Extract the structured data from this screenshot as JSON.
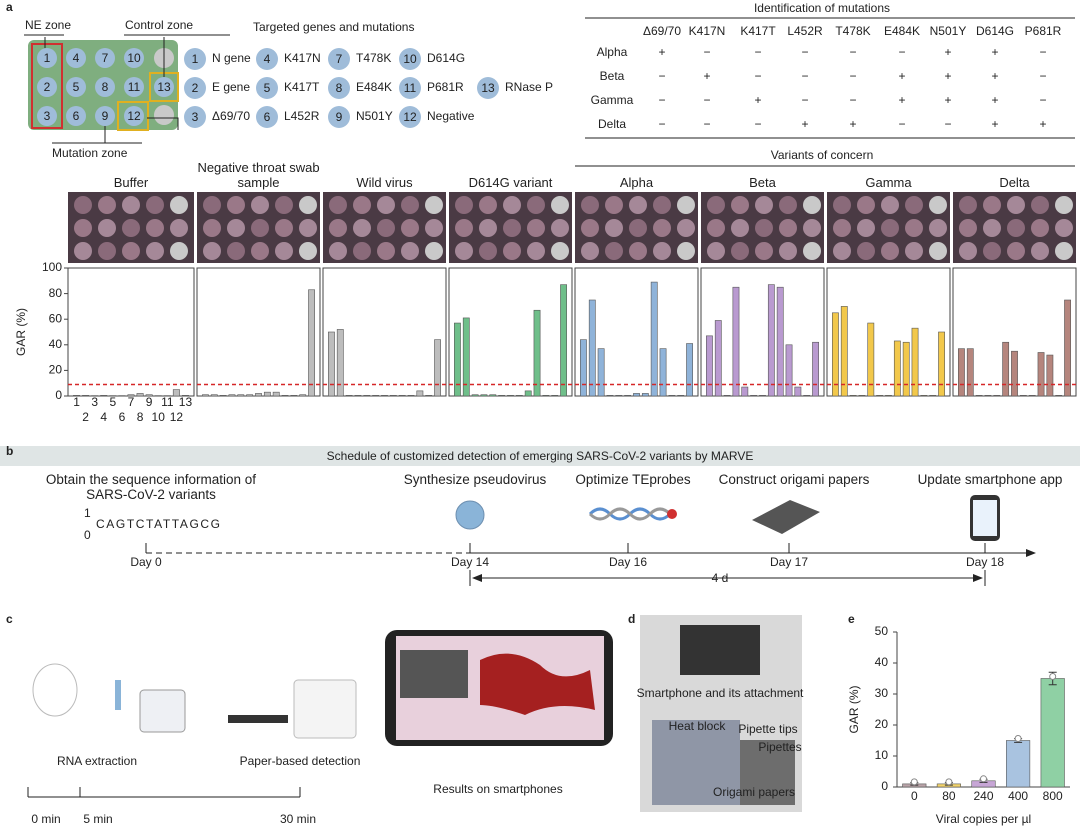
{
  "panel_labels": [
    "a",
    "b",
    "c",
    "d",
    "e"
  ],
  "plate": {
    "ne_zone": "NE zone",
    "control_zone": "Control zone",
    "mutation_zone": "Mutation zone"
  },
  "genes": {
    "title": "Targeted genes and mutations",
    "items": [
      {
        "number": 1,
        "label": "N gene"
      },
      {
        "number": 2,
        "label": "E gene"
      },
      {
        "number": 3,
        "label": "Δ69/70"
      },
      {
        "number": 4,
        "label": "K417N"
      },
      {
        "number": 5,
        "label": "K417T"
      },
      {
        "number": 6,
        "label": "L452R"
      },
      {
        "number": 7,
        "label": "T478K"
      },
      {
        "number": 8,
        "label": "E484K"
      },
      {
        "number": 9,
        "label": "N501Y"
      },
      {
        "number": 10,
        "label": "D614G"
      },
      {
        "number": 11,
        "label": "P681R"
      },
      {
        "number": 12,
        "label": "Negative"
      },
      {
        "number": 13,
        "label": "RNase P"
      }
    ]
  },
  "mutation_table": {
    "title": "Identification of mutations",
    "columns": [
      "Δ69/70",
      "K417N",
      "K417T",
      "L452R",
      "T478K",
      "E484K",
      "N501Y",
      "D614G",
      "P681R"
    ],
    "rows": [
      {
        "variant": "Alpha",
        "cells": [
          "+",
          "−",
          "−",
          "−",
          "−",
          "−",
          "+",
          "+",
          "−"
        ]
      },
      {
        "variant": "Beta",
        "cells": [
          "−",
          "+",
          "−",
          "−",
          "−",
          "+",
          "+",
          "+",
          "−"
        ]
      },
      {
        "variant": "Gamma",
        "cells": [
          "−",
          "−",
          "+",
          "−",
          "−",
          "+",
          "+",
          "+",
          "−"
        ]
      },
      {
        "variant": "Delta",
        "cells": [
          "−",
          "−",
          "−",
          "+",
          "+",
          "−",
          "−",
          "+",
          "+"
        ]
      }
    ]
  },
  "variants_heading": "Variants of concern",
  "chart_data": [
    {
      "type": "bar",
      "title": "Buffer",
      "categories": [
        "1",
        "2",
        "3",
        "4",
        "5",
        "6",
        "7",
        "8",
        "9",
        "10",
        "11",
        "12",
        "13"
      ],
      "values": [
        0.5,
        0.5,
        0.3,
        0.5,
        0.3,
        0.3,
        1,
        2,
        1,
        0.3,
        0.3,
        5,
        0.5
      ],
      "color": "#bdbdbd",
      "ylim": [
        0,
        100
      ],
      "yticks": [
        0,
        20,
        40,
        60,
        80,
        100
      ],
      "ylabel": "GAR (%)",
      "threshold": 9,
      "threshold_color": "#d62728"
    },
    {
      "type": "bar",
      "title": "Negative throat swab sample",
      "values": [
        1,
        1,
        0.5,
        1,
        1,
        1,
        2,
        3,
        3,
        0.5,
        0.5,
        1,
        83
      ],
      "color": "#bdbdbd",
      "ylim": [
        0,
        100
      ],
      "threshold": 9,
      "threshold_color": "#d62728"
    },
    {
      "type": "bar",
      "title": "Wild virus",
      "values": [
        50,
        52,
        0.5,
        0.5,
        0.5,
        0.5,
        0.5,
        0.5,
        0.5,
        0.5,
        4,
        0.5,
        44
      ],
      "color": "#bdbdbd",
      "ylim": [
        0,
        100
      ],
      "threshold": 9,
      "threshold_color": "#d62728"
    },
    {
      "type": "bar",
      "title": "D614G variant",
      "values": [
        57,
        61,
        1,
        1,
        1,
        0.5,
        0.5,
        0.5,
        4,
        67,
        0.5,
        0.5,
        87
      ],
      "color": "#6fbf8a",
      "ylim": [
        0,
        100
      ],
      "threshold": 9,
      "threshold_color": "#d62728"
    },
    {
      "type": "bar",
      "title": "Alpha",
      "values": [
        44,
        75,
        37,
        0.5,
        0.5,
        0.5,
        2,
        2,
        89,
        37,
        0.5,
        0.5,
        41
      ],
      "color": "#8fb3d9",
      "ylim": [
        0,
        100
      ],
      "threshold": 9,
      "threshold_color": "#d62728"
    },
    {
      "type": "bar",
      "title": "Beta",
      "values": [
        47,
        59,
        0.5,
        85,
        7,
        0.5,
        0.5,
        87,
        85,
        40,
        7,
        0.5,
        42
      ],
      "color": "#b99ad0",
      "ylim": [
        0,
        100
      ],
      "threshold": 9,
      "threshold_color": "#d62728"
    },
    {
      "type": "bar",
      "title": "Gamma",
      "values": [
        65,
        70,
        0.5,
        0.5,
        57,
        0.5,
        0.5,
        43,
        42,
        53,
        0.5,
        0.5,
        50
      ],
      "color": "#f2c84b",
      "ylim": [
        0,
        100
      ],
      "threshold": 9,
      "threshold_color": "#d62728"
    },
    {
      "type": "bar",
      "title": "Delta",
      "values": [
        37,
        37,
        0.5,
        0.5,
        0.5,
        42,
        35,
        0.5,
        0.5,
        34,
        32,
        0.5,
        75
      ],
      "color": "#b5857d",
      "ylim": [
        0,
        100
      ],
      "threshold": 9,
      "threshold_color": "#d62728"
    },
    {
      "type": "bar",
      "categories": [
        "0",
        "80",
        "240",
        "400",
        "800"
      ],
      "values": [
        1,
        1,
        2,
        15,
        35
      ],
      "errors": [
        0.4,
        0.4,
        0.5,
        0.6,
        2
      ],
      "colors": [
        "#b9a3a8",
        "#f2d36b",
        "#c7a6d6",
        "#a9c3e0",
        "#8fd0a4"
      ],
      "ylim": [
        0,
        50
      ],
      "yticks": [
        0,
        10,
        20,
        30,
        40,
        50
      ],
      "ylabel": "GAR (%)",
      "xlabel": "Viral copies per µl"
    }
  ],
  "schedule": {
    "title": "Schedule of customized detection of emerging SARS-CoV-2 variants by MARVE",
    "steps": [
      {
        "label": "Obtain the sequence information of SARS-CoV-2 variants",
        "day": "Day 0"
      },
      {
        "label": "Synthesize pseudovirus",
        "day": "Day 14"
      },
      {
        "label": "Optimize TEprobes",
        "day": "Day 16"
      },
      {
        "label": "Construct origami papers",
        "day": "Day 17"
      },
      {
        "label": "Update smartphone app",
        "day": "Day 18"
      }
    ],
    "interval": "4 d",
    "logo": {
      "sequence": "CAGTCTATTAGCG",
      "ticks": [
        "1",
        "0"
      ]
    }
  },
  "workflow": {
    "steps": [
      "RNA extraction",
      "Paper-based detection"
    ],
    "times": [
      "0 min",
      "5 min",
      "30 min"
    ],
    "result": "Results on smartphones"
  },
  "device": {
    "labels": [
      "Smartphone and its attachment",
      "Heat block",
      "Pipette tips",
      "Pipettes",
      "Origami papers"
    ]
  }
}
